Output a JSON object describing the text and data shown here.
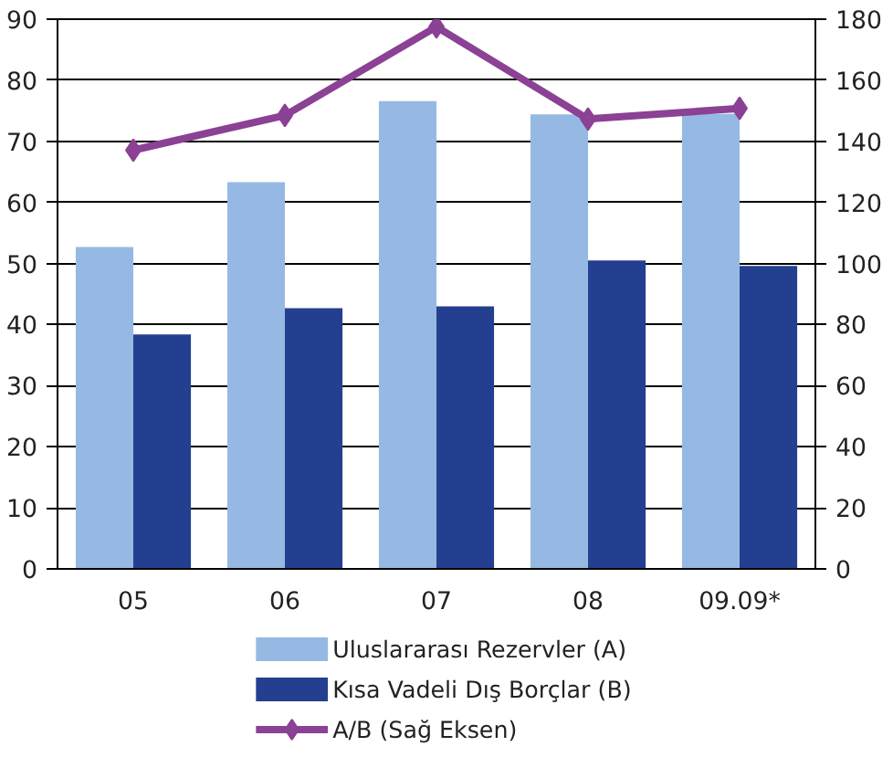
{
  "chart_data": {
    "type": "bar",
    "categories": [
      "05",
      "06",
      "07",
      "08",
      "09.09*"
    ],
    "series": [
      {
        "name": "Uluslararası Rezervler (A)",
        "color": "#95b9e3",
        "values": [
          52.7,
          63.3,
          76.6,
          74.4,
          74.5
        ]
      },
      {
        "name": "Kısa Vadeli Dış Borçlar (B)",
        "color": "#243f8f",
        "values": [
          38.4,
          42.7,
          43.0,
          50.5,
          49.6
        ]
      },
      {
        "name": "A/B (Sağ Eksen)",
        "color": "#8b4194",
        "type": "line",
        "axis": "y2",
        "marker": "diamond",
        "values": [
          137.1,
          148.5,
          177.5,
          147.3,
          150.8
        ]
      }
    ],
    "ylim": [
      0,
      90
    ],
    "yticks": [
      0,
      10,
      20,
      30,
      40,
      50,
      60,
      70,
      80,
      90
    ],
    "y2lim": [
      0,
      180
    ],
    "y2ticks": [
      0,
      20,
      40,
      60,
      80,
      100,
      120,
      140,
      160,
      180
    ],
    "grid": "y",
    "legend": "bottom"
  }
}
